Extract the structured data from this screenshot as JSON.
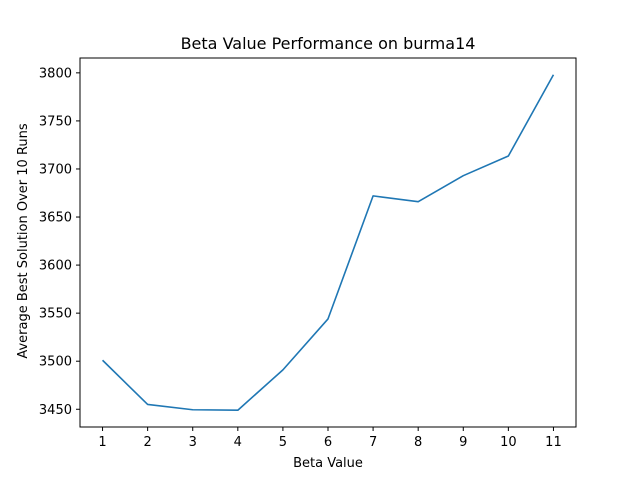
{
  "chart_data": {
    "type": "line",
    "title": "Beta Value Performance on burma14",
    "xlabel": "Beta Value",
    "ylabel": "Average Best Solution Over 10 Runs",
    "x": [
      1,
      2,
      3,
      4,
      5,
      6,
      7,
      8,
      9,
      10,
      11
    ],
    "series": [
      {
        "values": [
          3501,
          3455,
          3449.5,
          3449,
          3491,
          3544,
          3672,
          3666,
          3693,
          3713.5,
          3798
        ],
        "color": "#1f77b4"
      }
    ],
    "xticks": [
      1,
      2,
      3,
      4,
      5,
      6,
      7,
      8,
      9,
      10,
      11
    ],
    "yticks": [
      3450,
      3500,
      3550,
      3600,
      3650,
      3700,
      3750,
      3800
    ],
    "xlim": [
      0.5,
      11.5
    ],
    "ylim": [
      3431.55,
      3815.45
    ],
    "grid": false,
    "legend": "none"
  }
}
